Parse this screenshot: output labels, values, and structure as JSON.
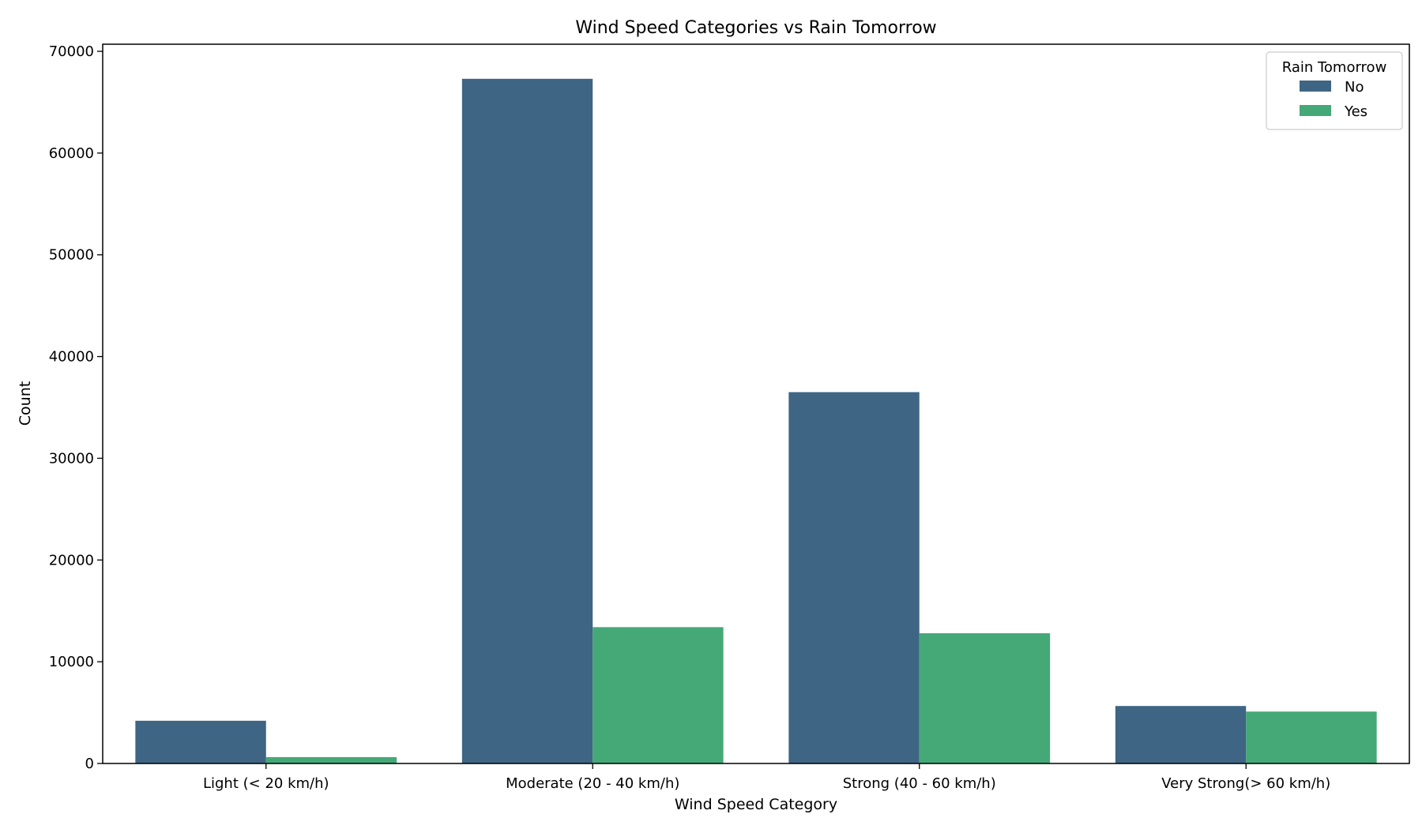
{
  "chart_data": {
    "type": "bar",
    "title": "Wind Speed Categories vs Rain Tomorrow",
    "xlabel": "Wind Speed Category",
    "ylabel": "Count",
    "categories": [
      "Light (< 20 km/h)",
      "Moderate (20 - 40 km/h)",
      "Strong (40 - 60 km/h)",
      "Very Strong(> 60 km/h)"
    ],
    "series": [
      {
        "name": "No",
        "color": "#3e6583",
        "values": [
          4200,
          67300,
          36500,
          5650
        ]
      },
      {
        "name": "Yes",
        "color": "#45a877",
        "values": [
          620,
          13400,
          12800,
          5100
        ]
      }
    ],
    "ylim": [
      0,
      70700
    ],
    "yticks": [
      0,
      10000,
      20000,
      30000,
      40000,
      50000,
      60000,
      70000
    ],
    "legend": {
      "title": "Rain Tomorrow",
      "position": "top-right"
    },
    "grid": false
  }
}
